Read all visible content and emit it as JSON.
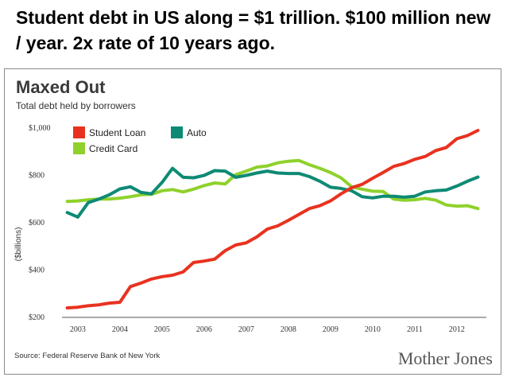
{
  "slide": {
    "heading": "Student debt in US along = $1 trillion. $100 million new / year. 2x rate of 10 years ago."
  },
  "chart_data": {
    "type": "line",
    "title": "Maxed Out",
    "subtitle": "Total debt held by borrowers",
    "ylabel": "($billions)",
    "xlabel": "",
    "ylim": [
      200,
      1000
    ],
    "xlim": [
      2002.7,
      2012.7
    ],
    "yticks": [
      {
        "value": 200,
        "label": "$200"
      },
      {
        "value": 400,
        "label": "$400"
      },
      {
        "value": 600,
        "label": "$600"
      },
      {
        "value": 800,
        "label": "$800"
      },
      {
        "value": 1000,
        "label": "$1,000"
      }
    ],
    "xticks": [
      {
        "value": 2003,
        "label": "2003"
      },
      {
        "value": 2004,
        "label": "2004"
      },
      {
        "value": 2005,
        "label": "2005"
      },
      {
        "value": 2006,
        "label": "2006"
      },
      {
        "value": 2007,
        "label": "2007"
      },
      {
        "value": 2008,
        "label": "2008"
      },
      {
        "value": 2009,
        "label": "2009"
      },
      {
        "value": 2010,
        "label": "2010"
      },
      {
        "value": 2011,
        "label": "2011"
      },
      {
        "value": 2012,
        "label": "2012"
      }
    ],
    "grid": false,
    "legend_position": "top-left",
    "x": [
      2002.75,
      2003.0,
      2003.25,
      2003.5,
      2003.75,
      2004.0,
      2004.25,
      2004.5,
      2004.75,
      2005.0,
      2005.25,
      2005.5,
      2005.75,
      2006.0,
      2006.25,
      2006.5,
      2006.75,
      2007.0,
      2007.25,
      2007.5,
      2007.75,
      2008.0,
      2008.25,
      2008.5,
      2008.75,
      2009.0,
      2009.25,
      2009.5,
      2009.75,
      2010.0,
      2010.25,
      2010.5,
      2010.75,
      2011.0,
      2011.25,
      2011.5,
      2011.75,
      2012.0,
      2012.25,
      2012.5
    ],
    "series": [
      {
        "name": "Student Loan",
        "color": "#e8321f",
        "values": [
          240,
          243,
          249,
          253,
          260,
          264,
          330,
          345,
          362,
          372,
          378,
          392,
          432,
          438,
          446,
          482,
          506,
          515,
          540,
          573,
          587,
          610,
          635,
          660,
          672,
          692,
          722,
          748,
          762,
          788,
          812,
          838,
          850,
          868,
          880,
          905,
          918,
          955,
          968,
          990
        ]
      },
      {
        "name": "Auto",
        "color": "#0e8a74",
        "values": [
          643,
          624,
          685,
          700,
          718,
          743,
          752,
          728,
          722,
          770,
          830,
          792,
          790,
          800,
          820,
          818,
          792,
          800,
          810,
          818,
          810,
          808,
          808,
          795,
          775,
          750,
          745,
          735,
          710,
          705,
          712,
          712,
          708,
          712,
          730,
          735,
          738,
          755,
          775,
          793
        ]
      },
      {
        "name": "Credit Card",
        "color": "#8fd12c",
        "values": [
          690,
          692,
          697,
          700,
          700,
          704,
          710,
          718,
          720,
          735,
          740,
          730,
          742,
          757,
          768,
          764,
          803,
          818,
          835,
          840,
          853,
          860,
          863,
          845,
          830,
          812,
          790,
          752,
          742,
          733,
          732,
          700,
          695,
          697,
          703,
          695,
          675,
          670,
          672,
          660
        ]
      }
    ],
    "source": "Source: Federal Reserve Bank of New York",
    "brand": "Mother Jones"
  }
}
